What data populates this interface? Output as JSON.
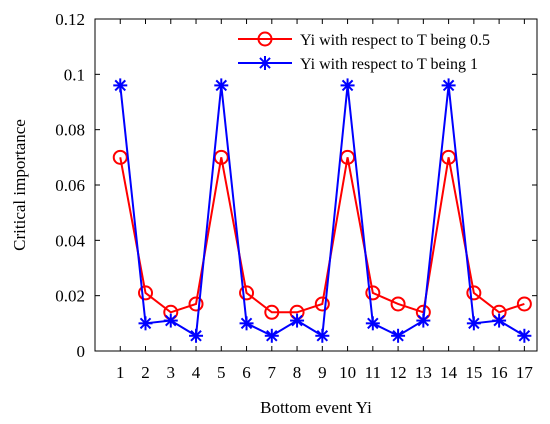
{
  "chart_data": {
    "type": "line",
    "xlabel": "Bottom event Yi",
    "ylabel": "Critical importance",
    "xlim": [
      0,
      17.5
    ],
    "ylim": [
      0,
      0.12
    ],
    "x_ticks": [
      "1",
      "2",
      "3",
      "4",
      "5",
      "6",
      "7",
      "8",
      "9",
      "10",
      "11",
      "12",
      "13",
      "14",
      "15",
      "16",
      "17"
    ],
    "y_ticks": [
      "0",
      "0.02",
      "0.04",
      "0.06",
      "0.08",
      "0.1",
      "0.12"
    ],
    "x": [
      1,
      2,
      3,
      4,
      5,
      6,
      7,
      8,
      9,
      10,
      11,
      12,
      13,
      14,
      15,
      16,
      17
    ],
    "grid": false,
    "legend_position": "top-right",
    "series": [
      {
        "name": "Yi with respect to T being 0.5",
        "color": "#ff0000",
        "marker": "circle",
        "values": [
          0.07,
          0.021,
          0.014,
          0.017,
          0.07,
          0.021,
          0.014,
          0.014,
          0.017,
          0.07,
          0.021,
          0.017,
          0.014,
          0.07,
          0.021,
          0.014,
          0.017
        ]
      },
      {
        "name": "Yi with respect to T being 1",
        "color": "#0000ff",
        "marker": "asterisk",
        "values": [
          0.096,
          0.01,
          0.011,
          0.0055,
          0.096,
          0.01,
          0.0055,
          0.011,
          0.0055,
          0.096,
          0.01,
          0.0055,
          0.011,
          0.096,
          0.01,
          0.011,
          0.0055
        ]
      }
    ]
  }
}
